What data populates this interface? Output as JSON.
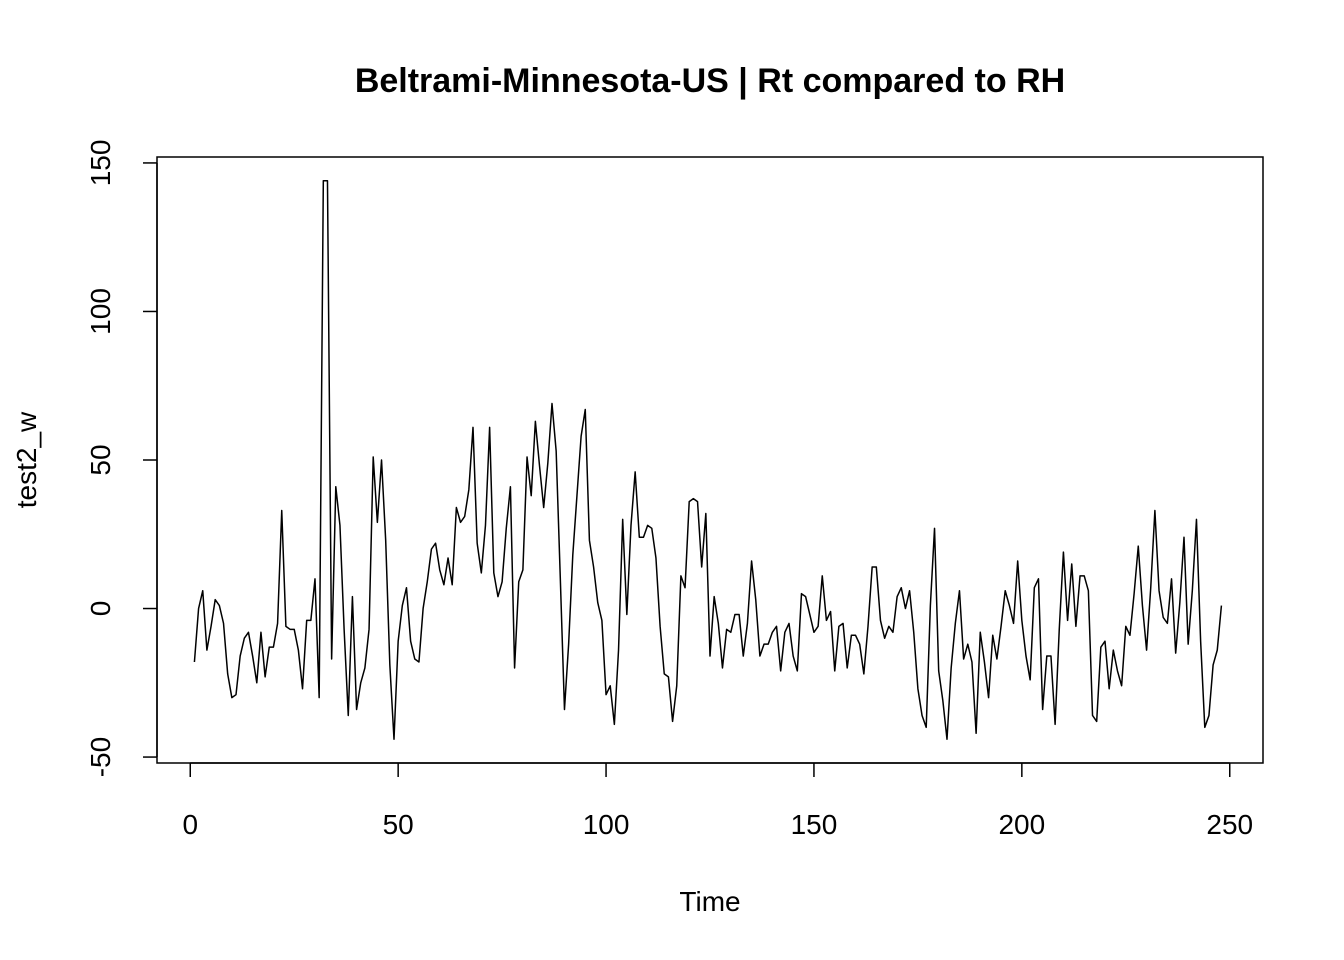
{
  "chart_data": {
    "type": "line",
    "title": "Beltrami-Minnesota-US | Rt compared to RH",
    "xlabel": "Time",
    "ylabel": "test2_w",
    "xlim": [
      -8,
      258
    ],
    "ylim": [
      -52,
      152
    ],
    "x_ticks": [
      0,
      50,
      100,
      150,
      200,
      250
    ],
    "y_ticks": [
      -50,
      0,
      50,
      100,
      150
    ],
    "grid": false,
    "series": [
      {
        "line_color": "#000000",
        "x_start": 1,
        "values": [
          -18,
          0,
          6,
          -14,
          -6,
          3,
          1,
          -5,
          -22,
          -30,
          -29,
          -16,
          -10,
          -8,
          -16,
          -25,
          -8,
          -23,
          -13,
          -13,
          -5,
          33,
          -6,
          -7,
          -7,
          -14,
          -27,
          -4,
          -4,
          10,
          -30,
          144,
          144,
          -17,
          41,
          28,
          -7,
          -36,
          4,
          -34,
          -25,
          -20,
          -7,
          51,
          29,
          50,
          23,
          -19,
          -44,
          -11,
          1,
          7,
          -11,
          -17,
          -18,
          0,
          9,
          20,
          22,
          13,
          8,
          17,
          8,
          34,
          29,
          31,
          40,
          61,
          22,
          12,
          28,
          61,
          12,
          4,
          9,
          27,
          41,
          -20,
          9,
          13,
          51,
          38,
          63,
          48,
          34,
          49,
          69,
          53,
          10,
          -34,
          -12,
          18,
          38,
          58,
          67,
          23,
          14,
          2,
          -4,
          -29,
          -26,
          -39,
          -14,
          30,
          -2,
          28,
          46,
          24,
          24,
          28,
          27,
          17,
          -6,
          -22,
          -23,
          -38,
          -26,
          11,
          7,
          36,
          37,
          36,
          14,
          32,
          -16,
          4,
          -5,
          -20,
          -7,
          -8,
          -2,
          -2,
          -16,
          -5,
          16,
          3,
          -16,
          -12,
          -12,
          -8,
          -6,
          -21,
          -8,
          -5,
          -16,
          -21,
          5,
          4,
          -2,
          -8,
          -6,
          11,
          -4,
          -1,
          -21,
          -6,
          -5,
          -20,
          -9,
          -9,
          -12,
          -22,
          -6,
          14,
          14,
          -4,
          -10,
          -6,
          -8,
          4,
          7,
          0,
          6,
          -8,
          -27,
          -36,
          -40,
          1,
          27,
          -21,
          -31,
          -44,
          -20,
          -5,
          6,
          -17,
          -12,
          -18,
          -42,
          -8,
          -18,
          -30,
          -9,
          -17,
          -6,
          6,
          1,
          -5,
          16,
          -4,
          -16,
          -24,
          7,
          10,
          -34,
          -16,
          -16,
          -39,
          -7,
          19,
          -4,
          15,
          -6,
          11,
          11,
          6,
          -36,
          -38,
          -13,
          -11,
          -27,
          -14,
          -21,
          -26,
          -6,
          -9,
          5,
          21,
          1,
          -14,
          7,
          33,
          6,
          -3,
          -5,
          10,
          -15,
          2,
          24,
          -12,
          6,
          30,
          -11,
          -40,
          -36,
          -19,
          -14,
          1
        ]
      }
    ]
  }
}
